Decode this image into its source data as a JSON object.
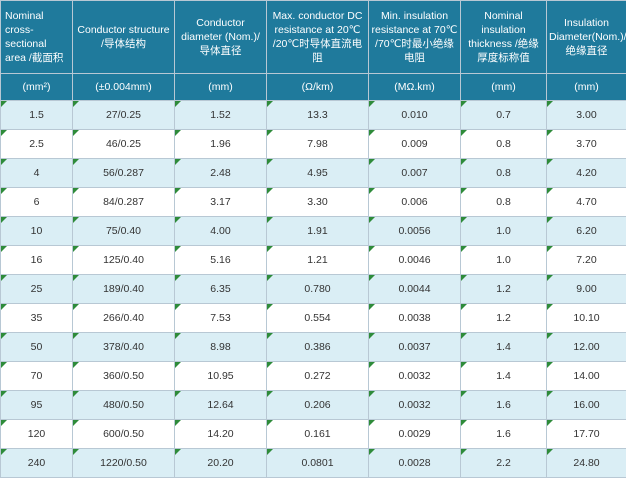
{
  "headers": [
    "Nominal cross-sectional area /截面积",
    "Conductor structure /导体结构",
    "Conductor diameter (Nom.)/导体直径",
    "Max. conductor DC resistance at 20℃ /20℃时导体直流电阻",
    "Min. insulation resistance at 70℃ /70℃时最小绝缘电阻",
    "Nominal insulation thickness /绝缘厚度标称值",
    "Insulation Diameter(Nom.)/绝缘直径"
  ],
  "units": [
    "(mm²)",
    "(±0.004mm)",
    "(mm)",
    "(Ω/km)",
    "(MΩ.km)",
    "(mm)",
    "(mm)"
  ],
  "rows": [
    [
      "1.5",
      "27/0.25",
      "1.52",
      "13.3",
      "0.010",
      "0.7",
      "3.00"
    ],
    [
      "2.5",
      "46/0.25",
      "1.96",
      "7.98",
      "0.009",
      "0.8",
      "3.70"
    ],
    [
      "4",
      "56/0.287",
      "2.48",
      "4.95",
      "0.007",
      "0.8",
      "4.20"
    ],
    [
      "6",
      "84/0.287",
      "3.17",
      "3.30",
      "0.006",
      "0.8",
      "4.70"
    ],
    [
      "10",
      "75/0.40",
      "4.00",
      "1.91",
      "0.0056",
      "1.0",
      "6.20"
    ],
    [
      "16",
      "125/0.40",
      "5.16",
      "1.21",
      "0.0046",
      "1.0",
      "7.20"
    ],
    [
      "25",
      "189/0.40",
      "6.35",
      "0.780",
      "0.0044",
      "1.2",
      "9.00"
    ],
    [
      "35",
      "266/0.40",
      "7.53",
      "0.554",
      "0.0038",
      "1.2",
      "10.10"
    ],
    [
      "50",
      "378/0.40",
      "8.98",
      "0.386",
      "0.0037",
      "1.4",
      "12.00"
    ],
    [
      "70",
      "360/0.50",
      "10.95",
      "0.272",
      "0.0032",
      "1.4",
      "14.00"
    ],
    [
      "95",
      "480/0.50",
      "12.64",
      "0.206",
      "0.0032",
      "1.6",
      "16.00"
    ],
    [
      "120",
      "600/0.50",
      "14.20",
      "0.161",
      "0.0029",
      "1.6",
      "17.70"
    ],
    [
      "240",
      "1220/0.50",
      "20.20",
      "0.0801",
      "0.0028",
      "2.2",
      "24.80"
    ]
  ],
  "colors": {
    "header_bg": "#1f7a9c",
    "row_alt_bg": "#daeef5",
    "corner_marker": "#2e8b3a"
  }
}
